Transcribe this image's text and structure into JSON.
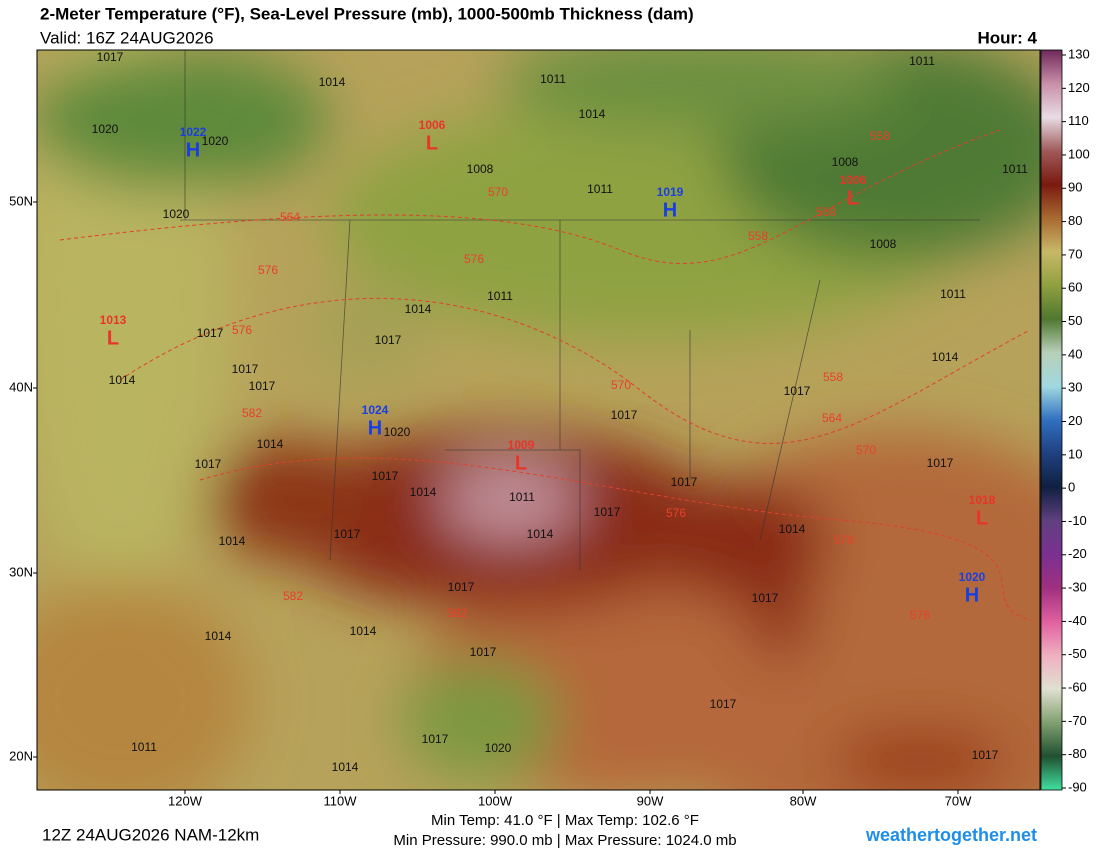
{
  "header": {
    "title": "2-Meter Temperature (°F), Sea-Level Pressure (mb), 1000-500mb Thickness (dam)",
    "valid": "Valid: 16Z 24AUG2026",
    "hour": "Hour: 4"
  },
  "map": {
    "lat_labels": [
      "50N",
      "40N",
      "30N",
      "20N"
    ],
    "lon_labels": [
      "120W",
      "110W",
      "100W",
      "90W",
      "80W",
      "70W"
    ],
    "pressure_centers": [
      {
        "symbol": "H",
        "value": "1022"
      },
      {
        "symbol": "L",
        "value": "1006"
      },
      {
        "symbol": "H",
        "value": "1019"
      },
      {
        "symbol": "L",
        "value": "1006"
      },
      {
        "symbol": "L",
        "value": "1013"
      },
      {
        "symbol": "H",
        "value": "1024"
      },
      {
        "symbol": "L",
        "value": "1009"
      },
      {
        "symbol": "L",
        "value": "1018"
      },
      {
        "symbol": "H",
        "value": "1020"
      }
    ],
    "isobar_labels": [
      "1017",
      "1014",
      "1011",
      "1014",
      "1011",
      "1020",
      "1020",
      "1008",
      "1011",
      "1008",
      "1011",
      "1020",
      "1008",
      "1011",
      "1014",
      "1011",
      "1017",
      "1017",
      "1017",
      "1017",
      "1014",
      "1014",
      "1017",
      "1017",
      "1020",
      "1014",
      "1017",
      "1017",
      "1014",
      "1011",
      "1017",
      "1017",
      "1017",
      "1014",
      "1017",
      "1014",
      "1014",
      "1017",
      "1017",
      "1014",
      "1014",
      "1017",
      "1017",
      "1017",
      "1020",
      "1011",
      "1014",
      "1017"
    ],
    "thickness_labels": [
      "558",
      "570",
      "564",
      "558",
      "558",
      "576",
      "576",
      "576",
      "570",
      "558",
      "582",
      "564",
      "570",
      "576",
      "576",
      "582",
      "582",
      "576"
    ]
  },
  "colorbar": {
    "ticks": [
      130,
      120,
      110,
      100,
      90,
      80,
      70,
      60,
      50,
      40,
      30,
      20,
      10,
      0,
      -10,
      -20,
      -30,
      -40,
      -50,
      -60,
      -70,
      -80,
      -90
    ]
  },
  "footer": {
    "run": "12Z 24AUG2026 NAM-12km",
    "temp_stats": "Min Temp:  41.0 °F | Max Temp: 102.6 °F",
    "pressure_stats": "Min Pressure: 990.0 mb | Max Pressure: 1024.0 mb",
    "site": "weathertogether.net"
  }
}
